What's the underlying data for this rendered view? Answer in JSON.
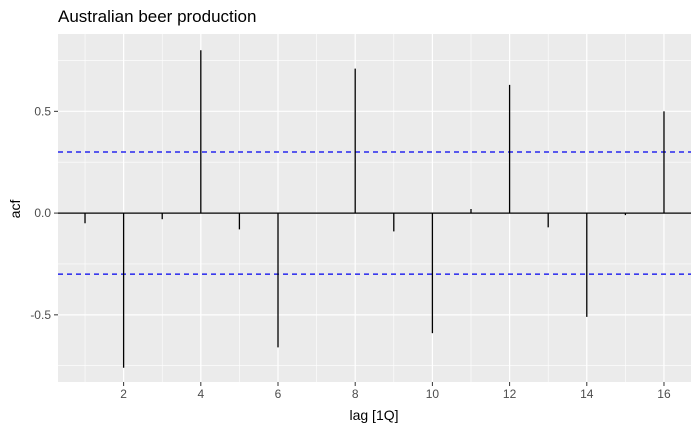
{
  "chart_data": {
    "type": "bar",
    "title": "Australian beer production",
    "xlabel": "lag [1Q]",
    "ylabel": "acf",
    "x": [
      1,
      2,
      3,
      4,
      5,
      6,
      7,
      8,
      9,
      10,
      11,
      12,
      13,
      14,
      15,
      16
    ],
    "values": [
      -0.05,
      -0.76,
      -0.03,
      0.8,
      -0.08,
      -0.66,
      0.0,
      0.71,
      -0.09,
      -0.59,
      0.02,
      0.63,
      -0.07,
      -0.51,
      -0.01,
      0.5
    ],
    "xlim": [
      0.3,
      16.7
    ],
    "ylim": [
      -0.83,
      0.88
    ],
    "x_ticks": [
      2,
      4,
      6,
      8,
      10,
      12,
      14,
      16
    ],
    "x_tick_labels": [
      "2",
      "4",
      "6",
      "8",
      "10",
      "12",
      "14",
      "16"
    ],
    "y_ticks": [
      -0.5,
      0.0,
      0.5
    ],
    "y_tick_labels": [
      "-0.5",
      "0.0",
      "0.5"
    ],
    "confidence_bound": 0.3,
    "grid": true,
    "colors": {
      "panel": "#ebebeb",
      "grid": "#ffffff",
      "bar": "#000000",
      "confidence_line": "#0000ee"
    }
  }
}
